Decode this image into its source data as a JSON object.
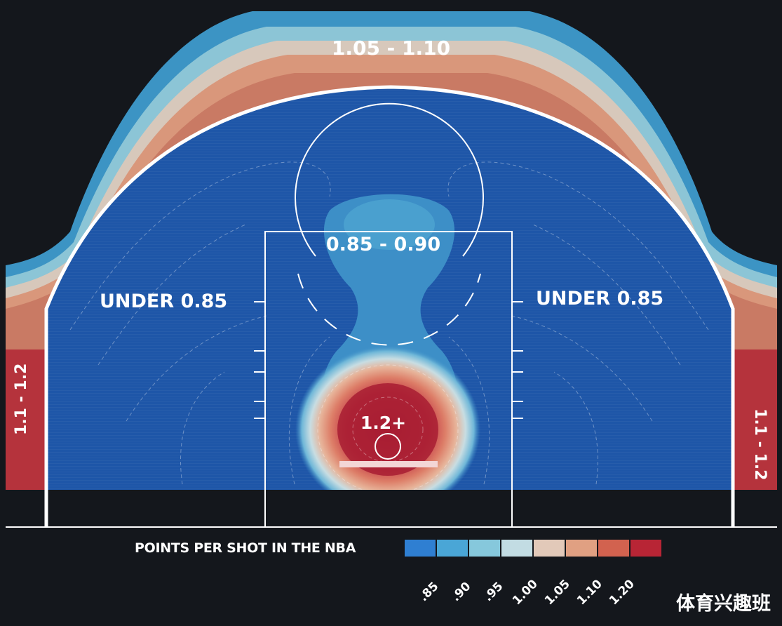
{
  "chart_data": {
    "type": "heatmap",
    "title": "POINTS PER SHOT IN THE NBA",
    "zones": [
      {
        "name": "above-break-three",
        "label": "1.05 - 1.10"
      },
      {
        "name": "left-corner-three",
        "label": "1.1 - 1.2"
      },
      {
        "name": "right-corner-three",
        "label": "1.1 - 1.2"
      },
      {
        "name": "left-midrange",
        "label": "UNDER 0.85"
      },
      {
        "name": "right-midrange",
        "label": "UNDER 0.85"
      },
      {
        "name": "free-throw-area",
        "label": "0.85 - 0.90"
      },
      {
        "name": "restricted-area",
        "label": "1.2+"
      }
    ],
    "legend": {
      "position": "bottom",
      "ticks": [
        ".85",
        ".90",
        ".95",
        "1.00",
        "1.05",
        "1.10",
        "1.20"
      ],
      "colors": [
        "#2f7fd2",
        "#4aa6d6",
        "#86c8dc",
        "#c2dce3",
        "#e2c9b9",
        "#e0a082",
        "#d2624f",
        "#b82535"
      ]
    }
  },
  "colors": {
    "background": "#14171c",
    "court": "#1e56a8",
    "paint_blob": "#3d8fc7",
    "hot": "#b3283a"
  },
  "watermark": "体育兴趣班"
}
